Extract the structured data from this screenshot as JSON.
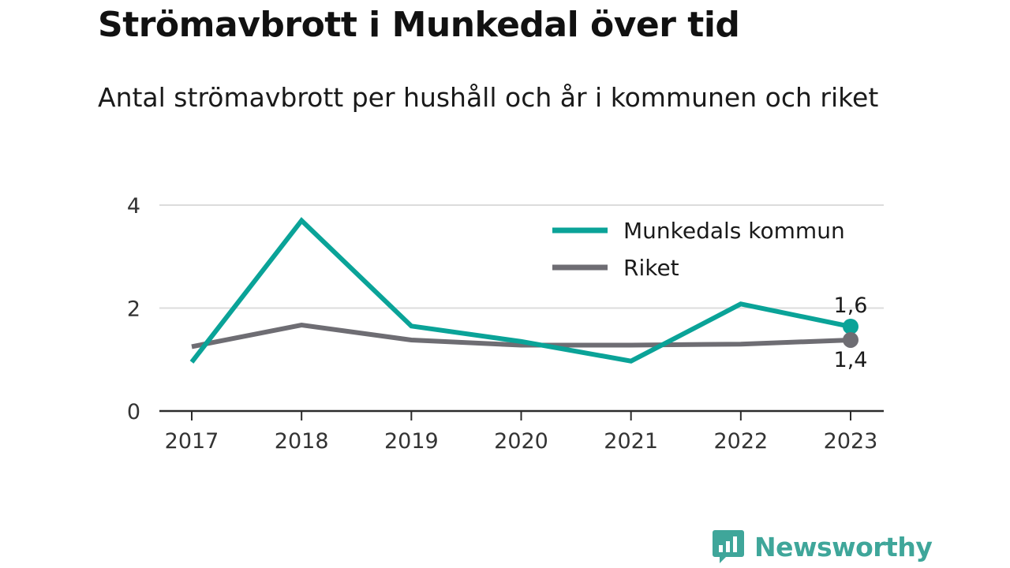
{
  "header": {
    "title": "Strömavbrott i Munkedal över tid",
    "subtitle": "Antal strömavbrott per hushåll och år i kommunen och riket"
  },
  "brand": {
    "name": "Newsworthy",
    "icon": "newsworthy-logo-icon",
    "color": "#3fa69a"
  },
  "chart_data": {
    "type": "line",
    "title": "Strömavbrott i Munkedal över tid",
    "subtitle": "Antal strömavbrott per hushåll och år i kommunen och riket",
    "xlabel": "",
    "ylabel": "",
    "x": [
      "2017",
      "2018",
      "2019",
      "2020",
      "2021",
      "2022",
      "2023"
    ],
    "ylim": [
      0,
      4
    ],
    "yticks": [
      0,
      2,
      4
    ],
    "ytick_labels": [
      "0",
      "2",
      "4"
    ],
    "grid": "horizontal",
    "legend_position": "top-right",
    "series": [
      {
        "name": "Munkedals kommun",
        "color": "#0aa398",
        "values": [
          0.95,
          3.7,
          1.65,
          1.35,
          0.97,
          2.08,
          1.64
        ],
        "end_label": "1,6",
        "end_label_position": "above"
      },
      {
        "name": "Riket",
        "color": "#6e6d73",
        "values": [
          1.25,
          1.67,
          1.38,
          1.28,
          1.28,
          1.3,
          1.38
        ],
        "end_label": "1,4",
        "end_label_position": "below"
      }
    ]
  }
}
